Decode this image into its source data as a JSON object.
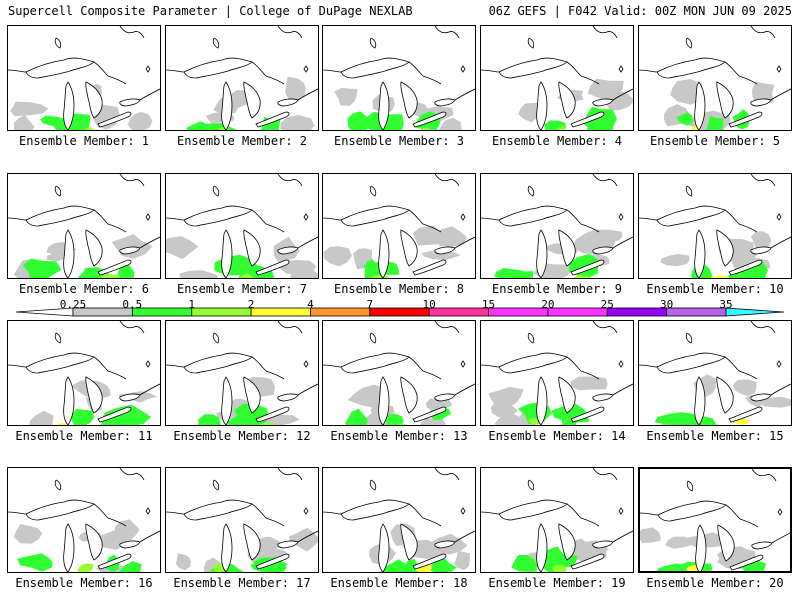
{
  "header": {
    "left": "Supercell Composite Parameter | College of DuPage NEXLAB",
    "right": "06Z GEFS | F042 Valid: 00Z MON JUN 09 2025"
  },
  "caption_prefix": "Ensemble Member: ",
  "members": [
    {
      "id": 1,
      "label": "Ensemble Member: 1"
    },
    {
      "id": 2,
      "label": "Ensemble Member: 2"
    },
    {
      "id": 3,
      "label": "Ensemble Member: 3"
    },
    {
      "id": 4,
      "label": "Ensemble Member: 4"
    },
    {
      "id": 5,
      "label": "Ensemble Member: 5"
    },
    {
      "id": 6,
      "label": "Ensemble Member: 6"
    },
    {
      "id": 7,
      "label": "Ensemble Member: 7"
    },
    {
      "id": 8,
      "label": "Ensemble Member: 8"
    },
    {
      "id": 9,
      "label": "Ensemble Member: 9"
    },
    {
      "id": 10,
      "label": "Ensemble Member: 10"
    },
    {
      "id": 11,
      "label": "Ensemble Member: 11"
    },
    {
      "id": 12,
      "label": "Ensemble Member: 12"
    },
    {
      "id": 13,
      "label": "Ensemble Member: 13"
    },
    {
      "id": 14,
      "label": "Ensemble Member: 14"
    },
    {
      "id": 15,
      "label": "Ensemble Member: 15"
    },
    {
      "id": 16,
      "label": "Ensemble Member: 16"
    },
    {
      "id": 17,
      "label": "Ensemble Member: 17"
    },
    {
      "id": 18,
      "label": "Ensemble Member: 18"
    },
    {
      "id": 19,
      "label": "Ensemble Member: 19"
    },
    {
      "id": 20,
      "label": "Ensemble Member: 20",
      "selected": true
    }
  ],
  "colorbar": {
    "bins": [
      {
        "from": "0.25",
        "to": "0.5",
        "color": "#c8c8c8"
      },
      {
        "from": "0.5",
        "to": "1",
        "color": "#32ff32"
      },
      {
        "from": "1",
        "to": "2",
        "color": "#96ff32"
      },
      {
        "from": "2",
        "to": "4",
        "color": "#ffff32"
      },
      {
        "from": "4",
        "to": "7",
        "color": "#ff9632"
      },
      {
        "from": "7",
        "to": "10",
        "color": "#ff0000"
      },
      {
        "from": "10",
        "to": "15",
        "color": "#ff32a0"
      },
      {
        "from": "15",
        "to": "20",
        "color": "#ff32ff"
      },
      {
        "from": "20",
        "to": "25",
        "color": "#ff32ff"
      },
      {
        "from": "25",
        "to": "30",
        "color": "#9600ff"
      },
      {
        "from": "30",
        "to": "35",
        "color": "#b464e6"
      }
    ],
    "ticks": [
      "0.25",
      "0.5",
      "1",
      "2",
      "4",
      "7",
      "10",
      "15",
      "20",
      "25",
      "30",
      "35"
    ],
    "under_color": "#ffffff",
    "over_color": "#32ffff"
  },
  "colors": {
    "gray": "#c8c8c8",
    "green": "#32ff32",
    "lime": "#96ff32",
    "yellow": "#ffff32"
  }
}
